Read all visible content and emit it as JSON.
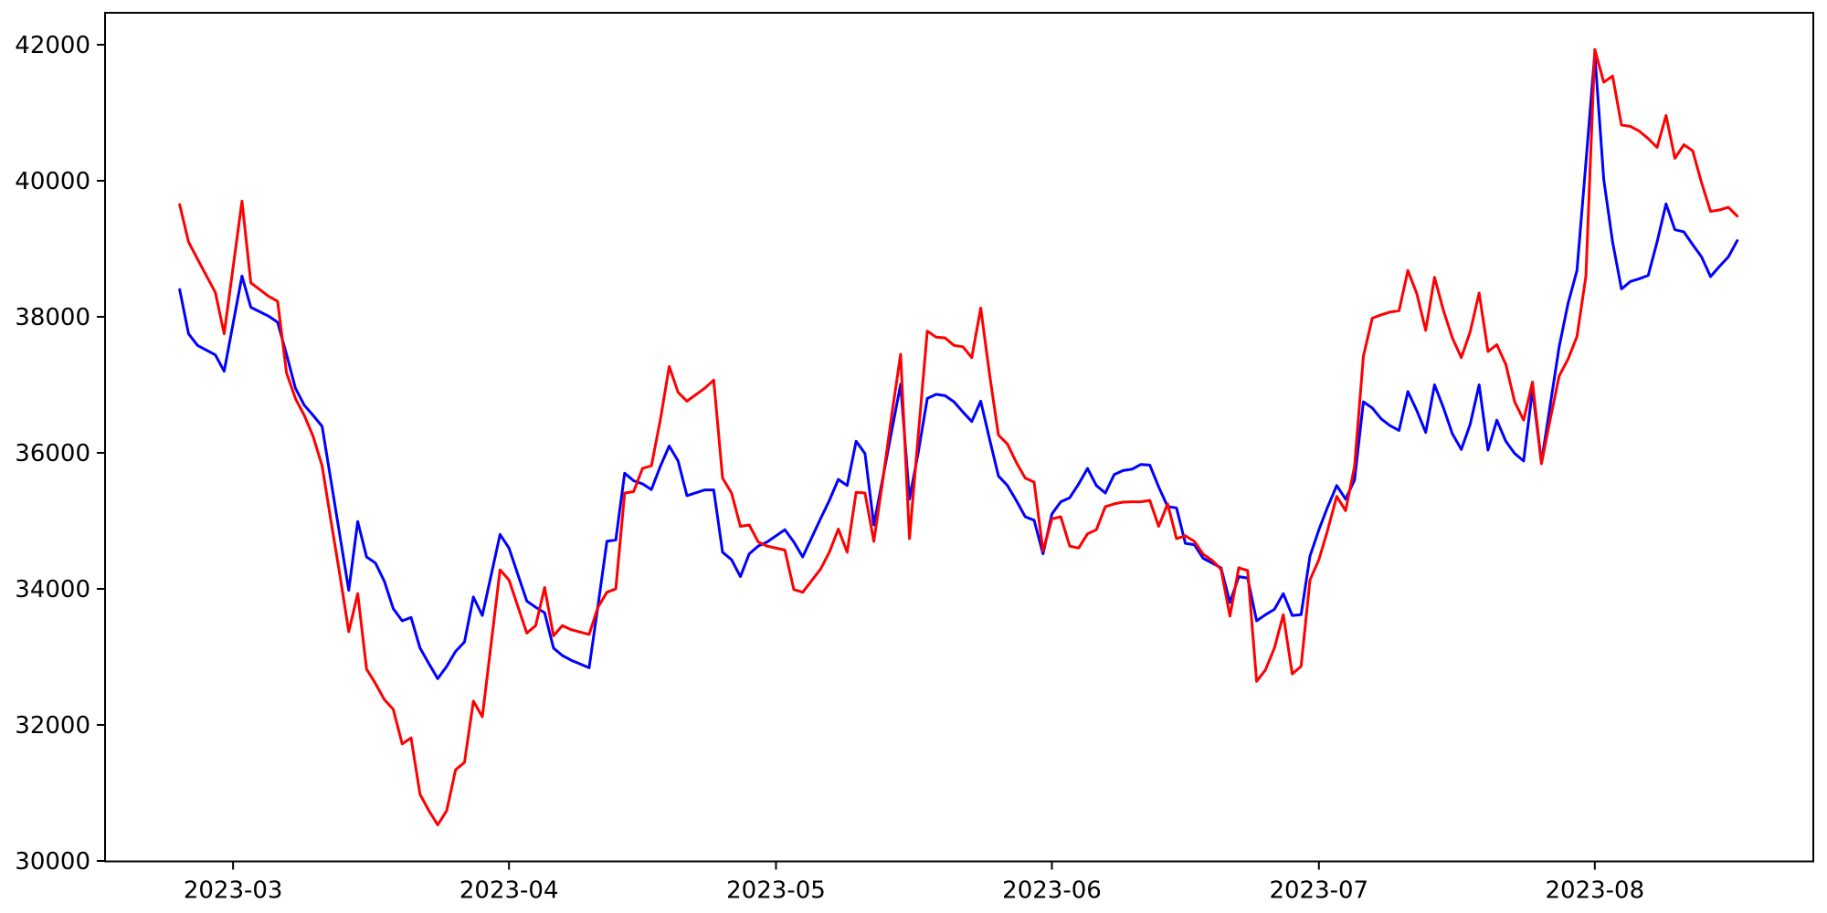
{
  "chart_data": {
    "type": "line",
    "title": "",
    "xlabel": "",
    "ylabel": "",
    "grid": false,
    "legend_position": "none",
    "background_color": "#ffffff",
    "axis_color": "#000000",
    "x_tick_labels": [
      "2023-03",
      "2023-04",
      "2023-05",
      "2023-06",
      "2023-07",
      "2023-08"
    ],
    "y_ticks": [
      30000,
      32000,
      34000,
      36000,
      38000,
      40000,
      42000
    ],
    "ylim": [
      30000,
      42520
    ],
    "x_range": [
      "2023-02-23",
      "2023-08-17"
    ],
    "dates": [
      "2023-02-23",
      "2023-02-24",
      "2023-02-25",
      "2023-02-27",
      "2023-02-28",
      "2023-03-02",
      "2023-03-03",
      "2023-03-05",
      "2023-03-06",
      "2023-03-07",
      "2023-03-08",
      "2023-03-09",
      "2023-03-10",
      "2023-03-11",
      "2023-03-12",
      "2023-03-13",
      "2023-03-14",
      "2023-03-15",
      "2023-03-16",
      "2023-03-17",
      "2023-03-18",
      "2023-03-19",
      "2023-03-20",
      "2023-03-21",
      "2023-03-22",
      "2023-03-23",
      "2023-03-24",
      "2023-03-25",
      "2023-03-26",
      "2023-03-27",
      "2023-03-28",
      "2023-03-29",
      "2023-03-31",
      "2023-04-01",
      "2023-04-03",
      "2023-04-04",
      "2023-04-05",
      "2023-04-06",
      "2023-04-07",
      "2023-04-08",
      "2023-04-10",
      "2023-04-11",
      "2023-04-12",
      "2023-04-13",
      "2023-04-14",
      "2023-04-15",
      "2023-04-16",
      "2023-04-17",
      "2023-04-18",
      "2023-04-19",
      "2023-04-20",
      "2023-04-21",
      "2023-04-23",
      "2023-04-24",
      "2023-04-25",
      "2023-04-26",
      "2023-04-27",
      "2023-04-28",
      "2023-04-29",
      "2023-04-30",
      "2023-05-02",
      "2023-05-03",
      "2023-05-04",
      "2023-05-06",
      "2023-05-07",
      "2023-05-08",
      "2023-05-09",
      "2023-05-10",
      "2023-05-11",
      "2023-05-12",
      "2023-05-13",
      "2023-05-14",
      "2023-05-15",
      "2023-05-16",
      "2023-05-17",
      "2023-05-18",
      "2023-05-19",
      "2023-05-20",
      "2023-05-21",
      "2023-05-22",
      "2023-05-23",
      "2023-05-24",
      "2023-05-25",
      "2023-05-26",
      "2023-05-27",
      "2023-05-28",
      "2023-05-29",
      "2023-05-30",
      "2023-05-31",
      "2023-06-01",
      "2023-06-02",
      "2023-06-03",
      "2023-06-04",
      "2023-06-05",
      "2023-06-06",
      "2023-06-07",
      "2023-06-08",
      "2023-06-09",
      "2023-06-10",
      "2023-06-11",
      "2023-06-12",
      "2023-06-13",
      "2023-06-14",
      "2023-06-15",
      "2023-06-16",
      "2023-06-17",
      "2023-06-18",
      "2023-06-19",
      "2023-06-20",
      "2023-06-21",
      "2023-06-22",
      "2023-06-23",
      "2023-06-24",
      "2023-06-25",
      "2023-06-26",
      "2023-06-27",
      "2023-06-28",
      "2023-06-29",
      "2023-06-30",
      "2023-07-01",
      "2023-07-02",
      "2023-07-03",
      "2023-07-04",
      "2023-07-05",
      "2023-07-06",
      "2023-07-07",
      "2023-07-08",
      "2023-07-09",
      "2023-07-10",
      "2023-07-11",
      "2023-07-12",
      "2023-07-13",
      "2023-07-14",
      "2023-07-15",
      "2023-07-16",
      "2023-07-17",
      "2023-07-18",
      "2023-07-19",
      "2023-07-20",
      "2023-07-21",
      "2023-07-22",
      "2023-07-23",
      "2023-07-24",
      "2023-07-25",
      "2023-07-26",
      "2023-07-27",
      "2023-07-28",
      "2023-07-29",
      "2023-07-30",
      "2023-07-31",
      "2023-08-01",
      "2023-08-02",
      "2023-08-03",
      "2023-08-04",
      "2023-08-05",
      "2023-08-06",
      "2023-08-07",
      "2023-08-08",
      "2023-08-09",
      "2023-08-10",
      "2023-08-11",
      "2023-08-12",
      "2023-08-13",
      "2023-08-14",
      "2023-08-15",
      "2023-08-16",
      "2023-08-17"
    ],
    "series": [
      {
        "name": "blue-series",
        "color": "#0000ff",
        "values": [
          38400,
          37750,
          37580,
          37440,
          37200,
          38600,
          38140,
          38010,
          37920,
          37450,
          36950,
          36700,
          36550,
          36390,
          35590,
          34780,
          33980,
          34990,
          34470,
          34380,
          34110,
          33710,
          33530,
          33580,
          33130,
          32900,
          32680,
          32860,
          33080,
          33220,
          33880,
          33610,
          34800,
          34600,
          33820,
          33730,
          33650,
          33130,
          33020,
          32950,
          32840,
          33750,
          34700,
          34720,
          35700,
          35590,
          35545,
          35460,
          35800,
          36100,
          35880,
          35370,
          35455,
          35455,
          34540,
          34430,
          34180,
          34515,
          34630,
          34690,
          34870,
          34690,
          34470,
          35030,
          35300,
          35610,
          35520,
          36170,
          35990,
          34940,
          35630,
          36320,
          37010,
          35320,
          36020,
          36800,
          36860,
          36840,
          36750,
          36600,
          36460,
          36760,
          36200,
          35660,
          35520,
          35300,
          35060,
          35010,
          34515,
          35100,
          35280,
          35340,
          35540,
          35770,
          35520,
          35410,
          35680,
          35740,
          35760,
          35830,
          35820,
          35500,
          35210,
          35190,
          34670,
          34650,
          34450,
          34380,
          34310,
          33800,
          34180,
          34160,
          33530,
          33620,
          33700,
          33930,
          33610,
          33620,
          34480,
          34870,
          35210,
          35520,
          35320,
          35600,
          36750,
          36660,
          36500,
          36400,
          36330,
          36900,
          36620,
          36300,
          37000,
          36660,
          36280,
          36050,
          36420,
          37000,
          36040,
          36480,
          36170,
          35990,
          35880,
          36930,
          35860,
          36710,
          37560,
          38200,
          38680,
          40270,
          41870,
          40020,
          39100,
          38410,
          38520,
          38560,
          38610,
          39100,
          39660,
          39280,
          39250,
          39060,
          38880,
          38590,
          38740,
          38880,
          39120
        ]
      },
      {
        "name": "red-series",
        "color": "#ff0000",
        "values": [
          39650,
          39100,
          38850,
          38360,
          37750,
          39700,
          38500,
          38300,
          38230,
          37180,
          36800,
          36550,
          36240,
          35810,
          35000,
          34200,
          33370,
          33930,
          32820,
          32610,
          32370,
          32230,
          31720,
          31810,
          30980,
          30740,
          30530,
          30740,
          31340,
          31450,
          32350,
          32120,
          34280,
          34130,
          33350,
          33460,
          34020,
          33310,
          33460,
          33400,
          33330,
          33730,
          33950,
          34000,
          35410,
          35430,
          35770,
          35810,
          36480,
          37270,
          36890,
          36760,
          36950,
          37070,
          35630,
          35410,
          34920,
          34940,
          34690,
          34630,
          34570,
          33990,
          33950,
          34290,
          34540,
          34880,
          34540,
          35420,
          35410,
          34700,
          35600,
          36550,
          37450,
          34740,
          36290,
          37790,
          37700,
          37690,
          37580,
          37560,
          37400,
          38130,
          37150,
          36260,
          36130,
          35860,
          35630,
          35570,
          34560,
          35030,
          35060,
          34630,
          34600,
          34810,
          34870,
          35210,
          35250,
          35275,
          35280,
          35280,
          35300,
          34920,
          35250,
          34740,
          34780,
          34700,
          34510,
          34420,
          34290,
          33600,
          34310,
          34270,
          32640,
          32810,
          33130,
          33620,
          32750,
          32860,
          34130,
          34430,
          34870,
          35360,
          35150,
          35800,
          37420,
          37980,
          38030,
          38070,
          38090,
          38680,
          38340,
          37800,
          38580,
          38090,
          37690,
          37400,
          37780,
          38350,
          37490,
          37590,
          37300,
          36750,
          36480,
          37040,
          35840,
          36500,
          37130,
          37380,
          37710,
          38600,
          41930,
          41450,
          41540,
          40820,
          40800,
          40730,
          40620,
          40490,
          40960,
          40330,
          40530,
          40440,
          39970,
          39550,
          39570,
          39610,
          39480
        ]
      }
    ]
  }
}
